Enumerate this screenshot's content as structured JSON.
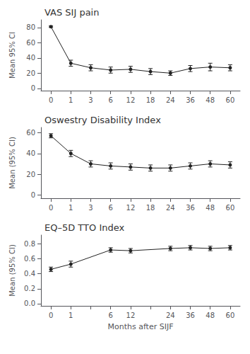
{
  "chart_data": [
    {
      "type": "line",
      "title": "VAS SIJ pain",
      "y_label": "Mean 95% CI",
      "categories": [
        "0",
        "1",
        "3",
        "6",
        "12",
        "18",
        "24",
        "36",
        "48",
        "60"
      ],
      "values": [
        81,
        33,
        27,
        24,
        25,
        22,
        20,
        26,
        28,
        27
      ],
      "error_low": [
        1,
        4,
        4,
        4,
        4,
        4,
        3,
        4,
        5,
        4
      ],
      "error_high": [
        1,
        4,
        4,
        4,
        4,
        4,
        3,
        4,
        5,
        4
      ],
      "ylim": [
        -3,
        90
      ],
      "yticks": [
        0,
        20,
        40,
        60,
        80
      ],
      "color": "#222222",
      "marker": "circle",
      "grid": false
    },
    {
      "type": "line",
      "title": "Oswestry Disability Index",
      "y_label": "Mean (95% CI)",
      "categories": [
        "0",
        "1",
        "3",
        "6",
        "12",
        "18",
        "24",
        "36",
        "48",
        "60"
      ],
      "values": [
        57,
        40,
        30,
        28,
        27,
        26,
        26,
        28,
        30,
        29
      ],
      "error_low": [
        2,
        3,
        3,
        3,
        3,
        3,
        3,
        3,
        3,
        3
      ],
      "error_high": [
        2,
        3,
        3,
        3,
        3,
        3,
        3,
        3,
        3,
        3
      ],
      "ylim": [
        -3,
        65
      ],
      "yticks": [
        0,
        20,
        40,
        60
      ],
      "color": "#222222",
      "marker": "circle",
      "grid": false
    },
    {
      "type": "line",
      "title": "EQ–5D TTO Index",
      "y_label": "Mean (95% CI)",
      "x_label": "Months after SIJF",
      "categories": [
        "0",
        "1",
        null,
        "6",
        "12",
        null,
        "24",
        "36",
        "48",
        "60"
      ],
      "values": [
        0.46,
        0.53,
        null,
        0.72,
        0.71,
        null,
        0.74,
        0.75,
        0.74,
        0.75
      ],
      "error_low": [
        0.03,
        0.04,
        null,
        0.03,
        0.03,
        null,
        0.03,
        0.03,
        0.03,
        0.03
      ],
      "error_high": [
        0.03,
        0.04,
        null,
        0.03,
        0.03,
        null,
        0.03,
        0.03,
        0.03,
        0.03
      ],
      "ylim": [
        -0.03,
        0.92
      ],
      "yticks": [
        {
          "value": 0,
          "label": "0.0"
        },
        0.2,
        0.4,
        0.6,
        0.8
      ],
      "color": "#222222",
      "marker": "circle",
      "grid": false
    }
  ]
}
